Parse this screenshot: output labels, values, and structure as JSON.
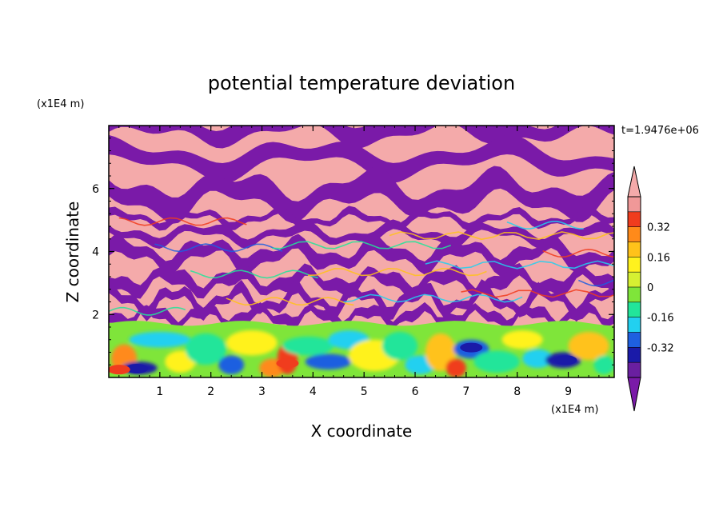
{
  "chart_data": {
    "type": "heatmap",
    "title": "potential temperature deviation",
    "xlabel": "X coordinate",
    "ylabel": "Z coordinate",
    "x_unit": "(x1E4 m)",
    "z_unit": "(x1E4 m)",
    "time_label": "t=1.9476e+06",
    "xlim": [
      0,
      9.9
    ],
    "ylim": [
      0,
      8
    ],
    "x_ticks": [
      "1",
      "2",
      "3",
      "4",
      "5",
      "6",
      "7",
      "8",
      "9"
    ],
    "y_ticks": [
      "2",
      "4",
      "6"
    ],
    "colorbar": {
      "levels": [
        -0.48,
        -0.4,
        -0.32,
        -0.24,
        -0.16,
        -0.08,
        0,
        0.08,
        0.16,
        0.24,
        0.32,
        0.4,
        0.48
      ],
      "labels": [
        "0.32",
        "0.16",
        "0",
        "-0.16",
        "-0.32"
      ],
      "label_values": [
        0.32,
        0.16,
        0,
        -0.16,
        -0.32
      ],
      "colors_low_to_high": [
        "#6a1fa0",
        "#1a1aa8",
        "#1e5fe0",
        "#22d0f0",
        "#22e59a",
        "#7fe53a",
        "#d6f032",
        "#fff21e",
        "#ffc21a",
        "#ff8a1a",
        "#f03c1e",
        "#f09898",
        "#f4aaaa"
      ],
      "under_color": "#7a1aa8",
      "over_color": "#f4aaaa"
    }
  }
}
